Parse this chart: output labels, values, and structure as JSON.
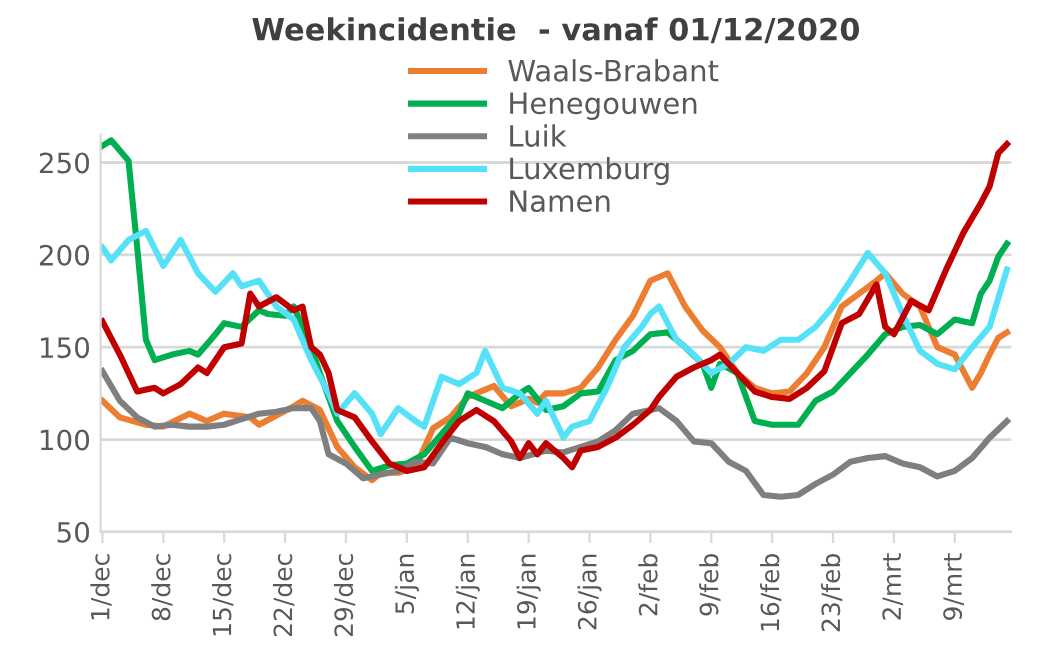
{
  "chart_data": {
    "type": "line",
    "title": "Weekincidentie  - vanaf 01/12/2020",
    "xlim": [
      "2020-11-30T19:00",
      "2021-03-15T12:00"
    ],
    "ylim": [
      50,
      265
    ],
    "yticks": [
      50,
      100,
      150,
      200,
      250
    ],
    "xticks": [
      {
        "value": "2020-12-01",
        "label": "1/dec"
      },
      {
        "value": "2020-12-08",
        "label": "8/dec"
      },
      {
        "value": "2020-12-15",
        "label": "15/dec"
      },
      {
        "value": "2020-12-22",
        "label": "22/dec"
      },
      {
        "value": "2020-12-29",
        "label": "29/dec"
      },
      {
        "value": "2021-01-05",
        "label": "5/jan"
      },
      {
        "value": "2021-01-12",
        "label": "12/jan"
      },
      {
        "value": "2021-01-19",
        "label": "19/jan"
      },
      {
        "value": "2021-01-26",
        "label": "26/jan"
      },
      {
        "value": "2021-02-02",
        "label": "2/feb"
      },
      {
        "value": "2021-02-09",
        "label": "9/feb"
      },
      {
        "value": "2021-02-16",
        "label": "16/feb"
      },
      {
        "value": "2021-02-23",
        "label": "23/feb"
      },
      {
        "value": "2021-03-02",
        "label": "2/mrt"
      },
      {
        "value": "2021-03-09",
        "label": "9/mrt"
      }
    ],
    "grid": "y",
    "legend": "top",
    "marker": "none",
    "line_style": "solid",
    "series": [
      {
        "name": "Waals-Brabant",
        "color": "#ed7d31",
        "x": [
          "2020-12-01",
          "2020-12-03",
          "2020-12-06",
          "2020-12-08",
          "2020-12-11",
          "2020-12-13",
          "2020-12-15",
          "2020-12-18",
          "2020-12-19",
          "2020-12-21",
          "2020-12-23",
          "2020-12-24",
          "2020-12-26",
          "2020-12-28",
          "2020-12-30",
          "2021-01-01",
          "2021-01-02",
          "2021-01-04",
          "2021-01-06",
          "2021-01-08",
          "2021-01-10",
          "2021-01-12",
          "2021-01-14",
          "2021-01-15",
          "2021-01-17",
          "2021-01-19",
          "2021-01-20",
          "2021-01-21",
          "2021-01-23",
          "2021-01-25",
          "2021-01-27",
          "2021-01-29",
          "2021-01-31",
          "2021-02-02",
          "2021-02-04",
          "2021-02-06",
          "2021-02-08",
          "2021-02-10",
          "2021-02-12",
          "2021-02-14",
          "2021-02-16",
          "2021-02-18",
          "2021-02-20",
          "2021-02-22",
          "2021-02-24",
          "2021-02-26",
          "2021-02-28",
          "2021-03-01",
          "2021-03-03",
          "2021-03-05",
          "2021-03-07",
          "2021-03-09",
          "2021-03-11",
          "2021-03-12",
          "2021-03-13",
          "2021-03-14",
          "2021-03-15"
        ],
        "values": [
          121,
          112,
          108,
          107,
          114,
          110,
          114,
          112,
          108,
          113,
          118,
          121,
          116,
          96,
          85,
          78,
          82,
          82,
          85,
          106,
          112,
          123,
          127,
          129,
          118,
          122,
          120,
          125,
          125,
          128,
          139,
          154,
          167,
          186,
          190,
          172,
          159,
          150,
          136,
          128,
          125,
          126,
          136,
          150,
          172,
          179,
          186,
          190,
          179,
          172,
          150,
          146,
          128,
          136,
          146,
          155,
          158
        ]
      },
      {
        "name": "Henegouwen",
        "color": "#00b050",
        "x": [
          "2020-12-01",
          "2020-12-02",
          "2020-12-04",
          "2020-12-05",
          "2020-12-06",
          "2020-12-07",
          "2020-12-09",
          "2020-12-11",
          "2020-12-12",
          "2020-12-14",
          "2020-12-15",
          "2020-12-17",
          "2020-12-19",
          "2020-12-20",
          "2020-12-22",
          "2020-12-23",
          "2020-12-25",
          "2020-12-26",
          "2020-12-28",
          "2020-12-30",
          "2021-01-01",
          "2021-01-03",
          "2021-01-05",
          "2021-01-07",
          "2021-01-09",
          "2021-01-11",
          "2021-01-12",
          "2021-01-14",
          "2021-01-16",
          "2021-01-18",
          "2021-01-19",
          "2021-01-21",
          "2021-01-23",
          "2021-01-25",
          "2021-01-27",
          "2021-01-29",
          "2021-01-31",
          "2021-02-02",
          "2021-02-04",
          "2021-02-06",
          "2021-02-08",
          "2021-02-09",
          "2021-02-10",
          "2021-02-12",
          "2021-02-14",
          "2021-02-16",
          "2021-02-19",
          "2021-02-21",
          "2021-02-23",
          "2021-02-25",
          "2021-02-27",
          "2021-03-01",
          "2021-03-03",
          "2021-03-05",
          "2021-03-07",
          "2021-03-09",
          "2021-03-11",
          "2021-03-12",
          "2021-03-13",
          "2021-03-14",
          "2021-03-15"
        ],
        "values": [
          259,
          262,
          251,
          204,
          154,
          143,
          146,
          148,
          146,
          157,
          163,
          161,
          170,
          168,
          167,
          172,
          150,
          136,
          110,
          96,
          83,
          86,
          87,
          92,
          103,
          114,
          125,
          121,
          117,
          125,
          128,
          116,
          118,
          125,
          126,
          143,
          148,
          157,
          158,
          150,
          141,
          128,
          141,
          136,
          110,
          108,
          108,
          121,
          126,
          136,
          146,
          157,
          161,
          162,
          157,
          165,
          163,
          179,
          186,
          199,
          206
        ]
      },
      {
        "name": "Luik",
        "color": "#7f7f7f",
        "x": [
          "2020-12-01",
          "2020-12-03",
          "2020-12-05",
          "2020-12-07",
          "2020-12-09",
          "2020-12-11",
          "2020-12-13",
          "2020-12-15",
          "2020-12-17",
          "2020-12-19",
          "2020-12-21",
          "2020-12-23",
          "2020-12-25",
          "2020-12-26",
          "2020-12-27",
          "2020-12-29",
          "2020-12-31",
          "2021-01-02",
          "2021-01-04",
          "2021-01-06",
          "2021-01-08",
          "2021-01-10",
          "2021-01-12",
          "2021-01-14",
          "2021-01-16",
          "2021-01-18",
          "2021-01-21",
          "2021-01-23",
          "2021-01-25",
          "2021-01-27",
          "2021-01-29",
          "2021-01-31",
          "2021-02-02",
          "2021-02-03",
          "2021-02-05",
          "2021-02-07",
          "2021-02-09",
          "2021-02-11",
          "2021-02-13",
          "2021-02-15",
          "2021-02-17",
          "2021-02-19",
          "2021-02-21",
          "2021-02-23",
          "2021-02-25",
          "2021-02-27",
          "2021-03-01",
          "2021-03-03",
          "2021-03-05",
          "2021-03-07",
          "2021-03-09",
          "2021-03-11",
          "2021-03-13",
          "2021-03-15"
        ],
        "values": [
          137,
          121,
          112,
          107,
          108,
          107,
          107,
          108,
          111,
          114,
          115,
          117,
          117,
          110,
          92,
          87,
          79,
          81,
          83,
          88,
          87,
          101,
          98,
          96,
          92,
          90,
          94,
          93,
          96,
          99,
          105,
          114,
          116,
          117,
          110,
          99,
          98,
          88,
          83,
          70,
          69,
          70,
          76,
          81,
          88,
          90,
          91,
          87,
          85,
          80,
          83,
          90,
          101,
          110
        ]
      },
      {
        "name": "Luxemburg",
        "color": "#55e1f7",
        "x": [
          "2020-12-01",
          "2020-12-02",
          "2020-12-04",
          "2020-12-06",
          "2020-12-08",
          "2020-12-10",
          "2020-12-12",
          "2020-12-14",
          "2020-12-16",
          "2020-12-17",
          "2020-12-19",
          "2020-12-21",
          "2020-12-23",
          "2020-12-25",
          "2020-12-27",
          "2020-12-28",
          "2020-12-30",
          "2021-01-01",
          "2021-01-02",
          "2021-01-04",
          "2021-01-06",
          "2021-01-07",
          "2021-01-09",
          "2021-01-11",
          "2021-01-13",
          "2021-01-14",
          "2021-01-16",
          "2021-01-18",
          "2021-01-20",
          "2021-01-21",
          "2021-01-23",
          "2021-01-24",
          "2021-01-26",
          "2021-01-28",
          "2021-01-30",
          "2021-02-01",
          "2021-02-02",
          "2021-02-03",
          "2021-02-05",
          "2021-02-07",
          "2021-02-09",
          "2021-02-11",
          "2021-02-13",
          "2021-02-15",
          "2021-02-17",
          "2021-02-19",
          "2021-02-21",
          "2021-02-23",
          "2021-02-25",
          "2021-02-27",
          "2021-03-01",
          "2021-03-03",
          "2021-03-05",
          "2021-03-07",
          "2021-03-09",
          "2021-03-11",
          "2021-03-13",
          "2021-03-15"
        ],
        "values": [
          204,
          197,
          208,
          213,
          194,
          208,
          190,
          180,
          190,
          183,
          186,
          172,
          165,
          143,
          125,
          114,
          125,
          114,
          103,
          117,
          110,
          107,
          134,
          130,
          136,
          148,
          128,
          125,
          114,
          121,
          101,
          107,
          110,
          128,
          150,
          161,
          168,
          172,
          154,
          146,
          136,
          141,
          150,
          148,
          154,
          154,
          161,
          172,
          186,
          201,
          190,
          168,
          148,
          141,
          138,
          150,
          161,
          192
        ]
      },
      {
        "name": "Namen",
        "color": "#c00000",
        "x": [
          "2020-12-01",
          "2020-12-03",
          "2020-12-05",
          "2020-12-07",
          "2020-12-08",
          "2020-12-10",
          "2020-12-12",
          "2020-12-13",
          "2020-12-15",
          "2020-12-17",
          "2020-12-18",
          "2020-12-19",
          "2020-12-21",
          "2020-12-23",
          "2020-12-24",
          "2020-12-25",
          "2020-12-26",
          "2020-12-27",
          "2020-12-28",
          "2020-12-30",
          "2021-01-01",
          "2021-01-03",
          "2021-01-05",
          "2021-01-07",
          "2021-01-09",
          "2021-01-11",
          "2021-01-13",
          "2021-01-15",
          "2021-01-17",
          "2021-01-18",
          "2021-01-19",
          "2021-01-20",
          "2021-01-21",
          "2021-01-23",
          "2021-01-24",
          "2021-01-25",
          "2021-01-27",
          "2021-01-29",
          "2021-01-31",
          "2021-02-02",
          "2021-02-03",
          "2021-02-05",
          "2021-02-07",
          "2021-02-09",
          "2021-02-10",
          "2021-02-12",
          "2021-02-14",
          "2021-02-16",
          "2021-02-18",
          "2021-02-20",
          "2021-02-22",
          "2021-02-24",
          "2021-02-26",
          "2021-02-28",
          "2021-03-01",
          "2021-03-02",
          "2021-03-04",
          "2021-03-06",
          "2021-03-08",
          "2021-03-10",
          "2021-03-12",
          "2021-03-13",
          "2021-03-14",
          "2021-03-15"
        ],
        "values": [
          164,
          146,
          126,
          128,
          125,
          130,
          139,
          136,
          150,
          152,
          179,
          172,
          177,
          170,
          172,
          150,
          146,
          136,
          116,
          112,
          99,
          87,
          83,
          85,
          98,
          110,
          116,
          110,
          99,
          90,
          98,
          92,
          98,
          90,
          85,
          94,
          96,
          101,
          108,
          116,
          123,
          134,
          139,
          143,
          146,
          136,
          126,
          123,
          122,
          128,
          137,
          163,
          168,
          184,
          161,
          157,
          175,
          170,
          192,
          212,
          228,
          237,
          255,
          260
        ]
      }
    ]
  }
}
